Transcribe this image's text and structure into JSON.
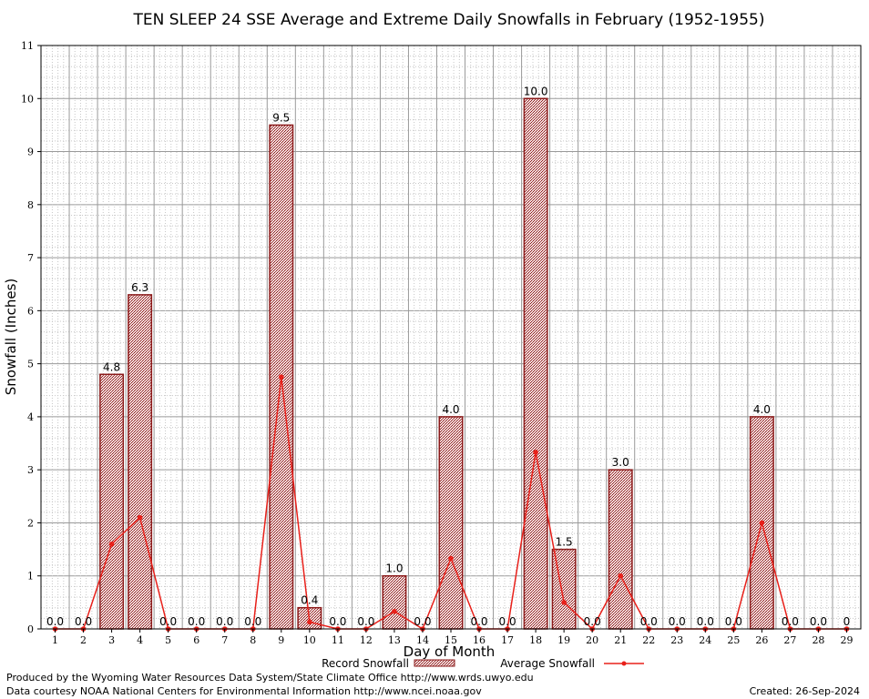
{
  "chart_data": {
    "type": "bar",
    "title": "TEN SLEEP 24 SSE Average and Extreme Daily Snowfalls in February (1952-1955)",
    "xlabel": "Day of Month",
    "ylabel": "Snowfall (Inches)",
    "ylim": [
      0,
      11
    ],
    "yticks": [
      "0",
      "1",
      "2",
      "3",
      "4",
      "5",
      "6",
      "7",
      "8",
      "9",
      "10",
      "11"
    ],
    "categories": [
      "1",
      "2",
      "3",
      "4",
      "5",
      "6",
      "7",
      "8",
      "9",
      "10",
      "11",
      "12",
      "13",
      "14",
      "15",
      "16",
      "17",
      "18",
      "19",
      "20",
      "21",
      "22",
      "23",
      "24",
      "25",
      "26",
      "27",
      "28",
      "29"
    ],
    "series": [
      {
        "name": "Record Snowfall",
        "kind": "bar",
        "color": "#8b1a1a",
        "values": [
          0.0,
          0.0,
          4.8,
          6.3,
          0.0,
          0.0,
          0.0,
          0.0,
          9.5,
          0.4,
          0.0,
          0.0,
          1.0,
          0.0,
          4.0,
          0.0,
          0.0,
          10.0,
          1.5,
          0.0,
          3.0,
          0.0,
          0.0,
          0.0,
          0.0,
          4.0,
          0.0,
          0.0,
          0
        ],
        "labels": [
          "0.0",
          "0.0",
          "4.8",
          "6.3",
          "0.0",
          "0.0",
          "0.0",
          "0.0",
          "9.5",
          "0.4",
          "0.0",
          "0.0",
          "1.0",
          "0.0",
          "4.0",
          "0.0",
          "0.0",
          "10.0",
          "1.5",
          "0.0",
          "3.0",
          "0.0",
          "0.0",
          "0.0",
          "0.0",
          "4.0",
          "0.0",
          "0.0",
          "0"
        ]
      },
      {
        "name": "Average Snowfall",
        "kind": "line",
        "color": "#e8201a",
        "values": [
          0,
          0,
          1.6,
          2.1,
          0,
          0,
          0,
          0,
          4.75,
          0.13,
          0,
          0,
          0.33,
          0,
          1.33,
          0,
          0,
          3.33,
          0.5,
          0,
          1.0,
          0,
          0,
          0,
          0,
          2.0,
          0,
          0,
          0
        ]
      }
    ],
    "legend": {
      "position": "bottom",
      "items": [
        "Record Snowfall",
        "Average Snowfall"
      ]
    }
  },
  "footer": {
    "produced_by": "Produced by the Wyoming Water Resources Data System/State Climate Office http://www.wrds.uwyo.edu",
    "courtesy": "Data courtesy NOAA National Centers for Environmental Information http://www.ncei.noaa.gov",
    "created": "Created: 26-Sep-2024"
  }
}
